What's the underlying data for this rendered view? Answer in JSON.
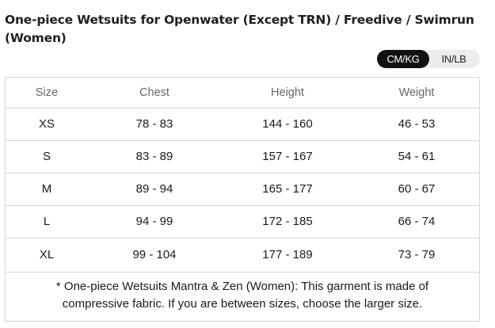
{
  "title": "One-piece Wetsuits for Openwater (Except TRN) / Freedive / Swimrun (Women)",
  "unit_toggle": {
    "options": [
      "CM/KG",
      "IN/LB"
    ],
    "selected": "CM/KG"
  },
  "table": {
    "headers": [
      "Size",
      "Chest",
      "Height",
      "Weight"
    ],
    "rows": [
      [
        "XS",
        "78 - 83",
        "144 - 160",
        "46 - 53"
      ],
      [
        "S",
        "83 - 89",
        "157 - 167",
        "54 - 61"
      ],
      [
        "M",
        "89 - 94",
        "165 - 177",
        "60 - 67"
      ],
      [
        "L",
        "94 - 99",
        "172 - 185",
        "66 - 74"
      ],
      [
        "XL",
        "99 - 104",
        "177 - 189",
        "73 - 79"
      ]
    ]
  },
  "note": {
    "line1": "* One-piece Wetsuits Mantra & Zen (Women): This garment is made of",
    "line2": "compressive fabric. If you are between sizes, choose the larger size."
  },
  "colors": {
    "toggle_active_bg": "#111111",
    "toggle_bg": "#ececec",
    "border": "#d6d6d6",
    "header_text": "#666666"
  }
}
